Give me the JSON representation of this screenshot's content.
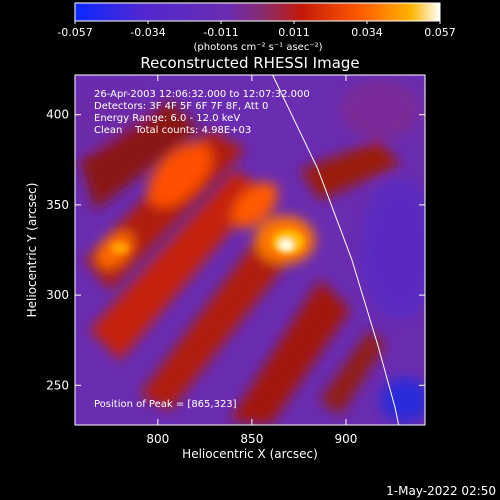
{
  "colorbar": {
    "tick_labels": [
      "-0.057",
      "-0.034",
      "-0.011",
      "0.011",
      "0.034",
      "0.057"
    ],
    "unit_label": "(photons cm⁻² s⁻¹ asec⁻²)",
    "range": [
      -0.057,
      0.057
    ],
    "colors": [
      "#0a28ff",
      "#5028d0",
      "#6a2cb0",
      "#8a2c6a",
      "#c4180a",
      "#ff5a00",
      "#ffb400",
      "#ffffff"
    ]
  },
  "plot": {
    "title": "Reconstructed RHESSI Image",
    "info_lines": [
      "26-Apr-2003 12:06:32.000 to 12:07:32.000",
      "Detectors: 3F 4F 5F 6F 7F 8F, Att 0",
      "Energy Range: 6.0 - 12.0 keV",
      "Clean    Total counts: 4.98E+03"
    ],
    "peak_label": "Position of Peak = [865,323]"
  },
  "footer": {
    "timestamp": "1-May-2022 02:50"
  },
  "chart_data": {
    "type": "heatmap",
    "title": "Reconstructed RHESSI Image",
    "xlabel": "Heliocentric X (arcsec)",
    "ylabel": "Heliocentric Y (arcsec)",
    "xlim": [
      756,
      942
    ],
    "ylim": [
      228,
      422
    ],
    "x_ticks": [
      800,
      850,
      900
    ],
    "y_ticks": [
      250,
      300,
      350,
      400
    ],
    "peak_position": [
      865,
      323
    ],
    "limb_curve": [
      [
        861,
        422
      ],
      [
        885,
        370
      ],
      [
        903,
        320
      ],
      [
        917,
        272
      ],
      [
        926,
        238
      ],
      [
        928,
        228
      ]
    ]
  }
}
